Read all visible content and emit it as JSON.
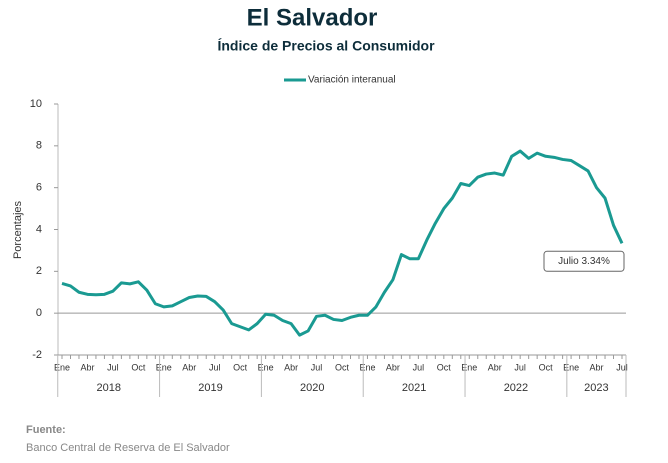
{
  "chart_data": {
    "type": "line",
    "title": "El Salvador",
    "subtitle": "Índice de Precios al Consumidor",
    "ylabel": "Porcentajes",
    "categories": [
      "Ene",
      null,
      null,
      "Abr",
      null,
      null,
      "Jul",
      null,
      null,
      "Oct",
      null,
      null,
      "Ene",
      null,
      null,
      "Abr",
      null,
      null,
      "Jul",
      null,
      null,
      "Oct",
      null,
      null,
      "Ene",
      null,
      null,
      "Abr",
      null,
      null,
      "Jul",
      null,
      null,
      "Oct",
      null,
      null,
      "Ene",
      null,
      null,
      "Abr",
      null,
      null,
      "Jul",
      null,
      null,
      "Oct",
      null,
      null,
      "Ene",
      null,
      null,
      "Abr",
      null,
      null,
      "Jul",
      null,
      null,
      "Oct",
      null,
      null,
      "Ene",
      null,
      null,
      "Abr",
      null,
      null,
      "Jul"
    ],
    "years": [
      "2018",
      "2019",
      "2020",
      "2021",
      "2022",
      "2023"
    ],
    "series": [
      {
        "name": "Variación interanual",
        "color": "#1a9a92",
        "values": [
          1.42,
          1.3,
          1.0,
          0.9,
          0.88,
          0.9,
          1.05,
          1.45,
          1.4,
          1.5,
          1.1,
          0.45,
          0.3,
          0.35,
          0.55,
          0.75,
          0.82,
          0.8,
          0.55,
          0.15,
          -0.5,
          -0.65,
          -0.8,
          -0.5,
          -0.05,
          -0.1,
          -0.35,
          -0.5,
          -1.05,
          -0.85,
          -0.15,
          -0.1,
          -0.3,
          -0.35,
          -0.2,
          -0.1,
          -0.1,
          0.3,
          1.0,
          1.6,
          2.8,
          2.6,
          2.6,
          3.5,
          4.3,
          5.0,
          5.5,
          6.2,
          6.1,
          6.5,
          6.65,
          6.7,
          6.6,
          7.5,
          7.75,
          7.4,
          7.65,
          7.5,
          7.45,
          7.35,
          7.3,
          7.05,
          6.8,
          6.0,
          5.5,
          4.2,
          3.34
        ]
      }
    ],
    "annotation": "Julio 3.34%",
    "ylim": [
      -2,
      10
    ],
    "yticks": [
      -2,
      0,
      2,
      4,
      6,
      8,
      10
    ],
    "source_title": "Fuente:",
    "source": "Banco Central de Reserva de El Salvador"
  }
}
